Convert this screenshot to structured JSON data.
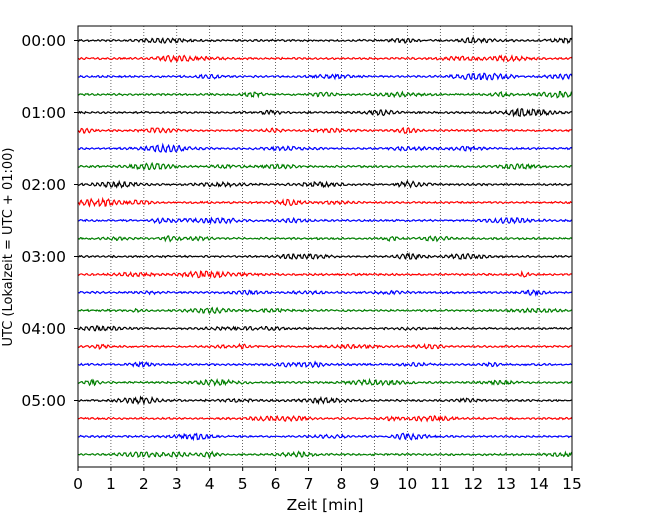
{
  "chart_data": {
    "type": "line",
    "title": "",
    "xlabel": "Zeit  [min]",
    "ylabel": "UTC (Lokalzeit = UTC + 01:00)",
    "xlim": [
      0,
      15
    ],
    "x_ticks": [
      "0",
      "1",
      "2",
      "3",
      "4",
      "5",
      "6",
      "7",
      "8",
      "9",
      "10",
      "11",
      "12",
      "13",
      "14",
      "15"
    ],
    "y_tick_labels": [
      "00:00",
      "01:00",
      "02:00",
      "03:00",
      "04:00",
      "05:00"
    ],
    "grid": "vertical dotted at each minute",
    "legend": "none",
    "trace_colors": [
      "#000000",
      "#ff0000",
      "#0000ff",
      "#007f00"
    ],
    "traces": [
      {
        "start": "00:00"
      },
      {
        "start": "00:15"
      },
      {
        "start": "00:30"
      },
      {
        "start": "00:45"
      },
      {
        "start": "01:00"
      },
      {
        "start": "01:15"
      },
      {
        "start": "01:30"
      },
      {
        "start": "01:45"
      },
      {
        "start": "02:00"
      },
      {
        "start": "02:15"
      },
      {
        "start": "02:30"
      },
      {
        "start": "02:45"
      },
      {
        "start": "03:00"
      },
      {
        "start": "03:15"
      },
      {
        "start": "03:30"
      },
      {
        "start": "03:45"
      },
      {
        "start": "04:00"
      },
      {
        "start": "04:15"
      },
      {
        "start": "04:30"
      },
      {
        "start": "04:45"
      },
      {
        "start": "05:00"
      },
      {
        "start": "05:15"
      },
      {
        "start": "05:30"
      },
      {
        "start": "05:45"
      }
    ]
  }
}
